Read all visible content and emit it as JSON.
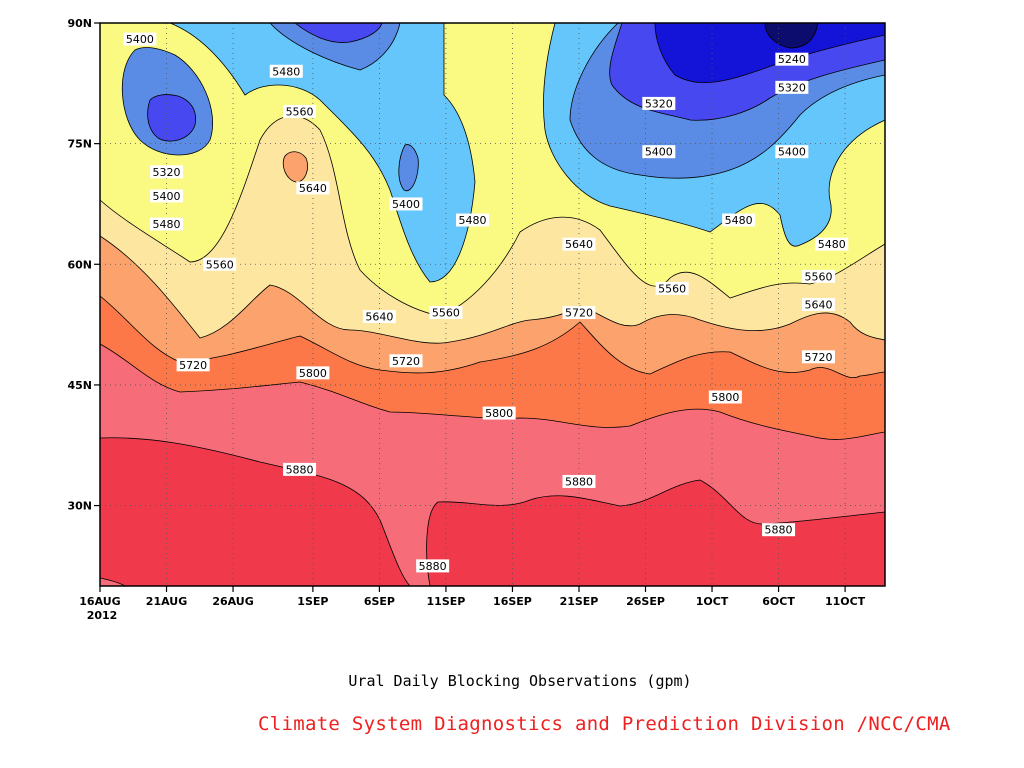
{
  "chart_data": {
    "type": "contour",
    "title": "Ural Daily Blocking Observations (gpm)",
    "credit": "Climate System Diagnostics and Prediction Division /NCC/CMA",
    "x_ticks": [
      "16AUG",
      "21AUG",
      "26AUG",
      "1SEP",
      "6SEP",
      "11SEP",
      "16SEP",
      "21SEP",
      "26SEP",
      "1OCT",
      "6OCT",
      "11OCT"
    ],
    "x_year": "2012",
    "y_ticks": [
      "30N",
      "45N",
      "60N",
      "75N",
      "90N"
    ],
    "x_range": [
      "2012-08-16",
      "2012-10-14"
    ],
    "y_range": [
      20,
      90
    ],
    "grid": true,
    "levels": [
      5240,
      5320,
      5400,
      5480,
      5560,
      5640,
      5720,
      5800,
      5880
    ],
    "level_colors": [
      "#0c0c6e",
      "#1414d8",
      "#4848f0",
      "#5a8ce6",
      "#64c6fa",
      "#fafa82",
      "#fce6a0",
      "#fca26c",
      "#fc7848",
      "#f66c78",
      "#f03a4c"
    ],
    "contour_labels": [
      {
        "text": "5400",
        "date": "2012-08-19",
        "lat": 88
      },
      {
        "text": "5320",
        "date": "2012-08-21",
        "lat": 71.5
      },
      {
        "text": "5400",
        "date": "2012-08-21",
        "lat": 68.5
      },
      {
        "text": "5480",
        "date": "2012-08-21",
        "lat": 65
      },
      {
        "text": "5560",
        "date": "2012-08-25",
        "lat": 60
      },
      {
        "text": "5480",
        "date": "2012-08-30",
        "lat": 84
      },
      {
        "text": "5560",
        "date": "2012-08-31",
        "lat": 79
      },
      {
        "text": "5640",
        "date": "2012-09-01",
        "lat": 69.5
      },
      {
        "text": "5720",
        "date": "2012-08-23",
        "lat": 47.5
      },
      {
        "text": "5800",
        "date": "2012-09-01",
        "lat": 46.5
      },
      {
        "text": "5880",
        "date": "2012-08-31",
        "lat": 34.5
      },
      {
        "text": "5400",
        "date": "2012-09-08",
        "lat": 67.5
      },
      {
        "text": "5480",
        "date": "2012-09-13",
        "lat": 65.5
      },
      {
        "text": "5640",
        "date": "2012-09-06",
        "lat": 53.5
      },
      {
        "text": "5560",
        "date": "2012-09-11",
        "lat": 54
      },
      {
        "text": "5720",
        "date": "2012-09-08",
        "lat": 48
      },
      {
        "text": "5880",
        "date": "2012-09-10",
        "lat": 22.5
      },
      {
        "text": "5800",
        "date": "2012-09-15",
        "lat": 41.5
      },
      {
        "text": "5880",
        "date": "2012-09-21",
        "lat": 33
      },
      {
        "text": "5640",
        "date": "2012-09-21",
        "lat": 62.5
      },
      {
        "text": "5720",
        "date": "2012-09-21",
        "lat": 54
      },
      {
        "text": "5320",
        "date": "2012-09-27",
        "lat": 80
      },
      {
        "text": "5400",
        "date": "2012-09-27",
        "lat": 74
      },
      {
        "text": "5560",
        "date": "2012-09-28",
        "lat": 57
      },
      {
        "text": "5480",
        "date": "2012-10-03",
        "lat": 65.5
      },
      {
        "text": "5800",
        "date": "2012-10-02",
        "lat": 43.5
      },
      {
        "text": "5240",
        "date": "2012-10-07",
        "lat": 85.5
      },
      {
        "text": "5320",
        "date": "2012-10-07",
        "lat": 82
      },
      {
        "text": "5400",
        "date": "2012-10-07",
        "lat": 74
      },
      {
        "text": "5480",
        "date": "2012-10-10",
        "lat": 62.5
      },
      {
        "text": "5560",
        "date": "2012-10-09",
        "lat": 58.5
      },
      {
        "text": "5640",
        "date": "2012-10-09",
        "lat": 55
      },
      {
        "text": "5720",
        "date": "2012-10-09",
        "lat": 48.5
      },
      {
        "text": "5880",
        "date": "2012-10-06",
        "lat": 27
      }
    ]
  }
}
